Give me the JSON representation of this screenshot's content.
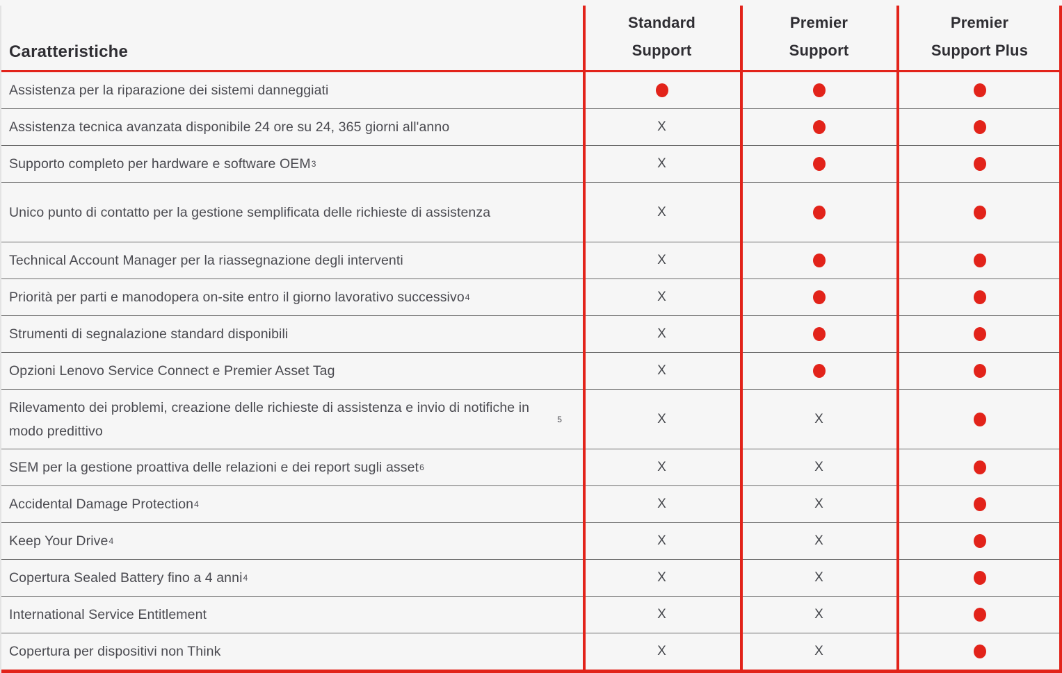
{
  "header": {
    "features_label": "Caratteristiche",
    "columns": [
      "Standard Support",
      "Premier Support",
      "Premier Support Plus"
    ]
  },
  "table": {
    "x_symbol": "X",
    "rows": [
      {
        "feature": "Assistenza per la riparazione dei sistemi danneggiati",
        "sup": "",
        "tall": false,
        "values": [
          "dot",
          "dot",
          "dot"
        ]
      },
      {
        "feature": "Assistenza tecnica avanzata disponibile 24 ore su 24, 365 giorni all'anno",
        "sup": "",
        "tall": false,
        "values": [
          "x",
          "dot",
          "dot"
        ]
      },
      {
        "feature": "Supporto completo per hardware e software OEM",
        "sup": "3",
        "tall": false,
        "values": [
          "x",
          "dot",
          "dot"
        ]
      },
      {
        "feature": "Unico punto di contatto per la gestione semplificata delle richieste di assistenza",
        "sup": "",
        "tall": true,
        "values": [
          "x",
          "dot",
          "dot"
        ]
      },
      {
        "feature": "Technical Account Manager per la riassegnazione degli interventi",
        "sup": "",
        "tall": false,
        "values": [
          "x",
          "dot",
          "dot"
        ]
      },
      {
        "feature": "Priorità per parti e manodopera on-site entro il giorno lavorativo successivo",
        "sup": "4",
        "tall": false,
        "values": [
          "x",
          "dot",
          "dot"
        ]
      },
      {
        "feature": "Strumenti di segnalazione standard disponibili",
        "sup": "",
        "tall": false,
        "values": [
          "x",
          "dot",
          "dot"
        ]
      },
      {
        "feature": "Opzioni Lenovo Service Connect e Premier Asset Tag",
        "sup": "",
        "tall": false,
        "values": [
          "x",
          "dot",
          "dot"
        ]
      },
      {
        "feature": "Rilevamento dei problemi, creazione delle richieste di assistenza e invio di notifiche in modo predittivo",
        "sup": "5",
        "tall": true,
        "values": [
          "x",
          "x",
          "dot"
        ]
      },
      {
        "feature": "SEM per la gestione proattiva delle relazioni e dei report sugli asset",
        "sup": "6",
        "tall": false,
        "values": [
          "x",
          "x",
          "dot"
        ]
      },
      {
        "feature": "Accidental Damage Protection",
        "sup": "4",
        "tall": false,
        "values": [
          "x",
          "x",
          "dot"
        ]
      },
      {
        "feature": "Keep Your Drive",
        "sup": "4",
        "tall": false,
        "values": [
          "x",
          "x",
          "dot"
        ]
      },
      {
        "feature": "Copertura Sealed Battery fino a 4 anni",
        "sup": "4",
        "tall": false,
        "values": [
          "x",
          "x",
          "dot"
        ]
      },
      {
        "feature": "International Service Entitlement",
        "sup": "",
        "tall": false,
        "values": [
          "x",
          "x",
          "dot"
        ]
      },
      {
        "feature": "Copertura per dispositivi non Think",
        "sup": "",
        "tall": false,
        "values": [
          "x",
          "x",
          "dot"
        ]
      }
    ]
  },
  "colors": {
    "accent_red": "#e2231a",
    "row_divider": "#6b6b6b",
    "background": "#f6f6f6",
    "heading_text": "#2f2e33",
    "body_text": "#4a4a50"
  }
}
